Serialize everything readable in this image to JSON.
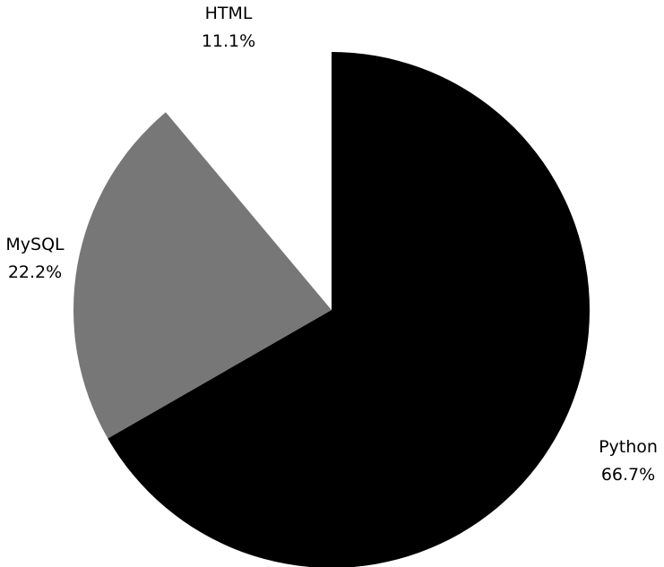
{
  "chart_data": {
    "type": "pie",
    "start_angle": "12 o'clock",
    "direction": "clockwise",
    "slices": [
      {
        "label": "Python",
        "percent": 66.7,
        "percent_label": "66.7%",
        "color": "#000000"
      },
      {
        "label": "MySQL",
        "percent": 22.2,
        "percent_label": "22.2%",
        "color": "#777777"
      },
      {
        "label": "HTML",
        "percent": 11.1,
        "percent_label": "11.1%",
        "color": "#ffffff"
      }
    ],
    "legend": "none"
  }
}
